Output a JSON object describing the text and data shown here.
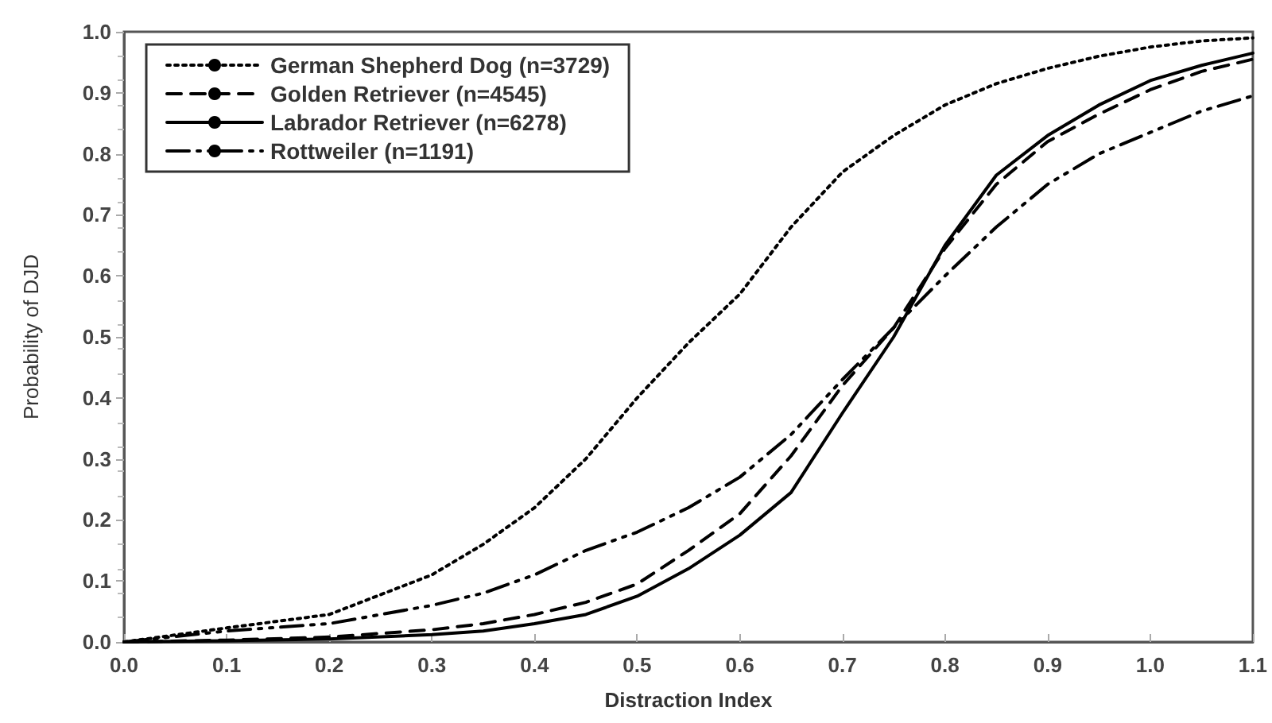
{
  "chart_data": {
    "type": "line",
    "xlabel": "Distraction Index",
    "ylabel": "Probability of DJD",
    "x": [
      0,
      0.1,
      0.2,
      0.3,
      0.35,
      0.4,
      0.45,
      0.5,
      0.55,
      0.6,
      0.65,
      0.7,
      0.75,
      0.8,
      0.85,
      0.9,
      0.95,
      1.0,
      1.05,
      1.1
    ],
    "series": [
      {
        "name": "German Shepherd Dog (n=3729)",
        "color": "#000000",
        "line_style": "dotted",
        "values": [
          0,
          0.023,
          0.045,
          0.11,
          0.16,
          0.22,
          0.3,
          0.4,
          0.49,
          0.57,
          0.68,
          0.77,
          0.83,
          0.88,
          0.915,
          0.94,
          0.96,
          0.975,
          0.985,
          0.99
        ]
      },
      {
        "name": "Golden Retriever (n=4545)",
        "color": "#000000",
        "line_style": "dashed",
        "values": [
          0,
          0.003,
          0.008,
          0.02,
          0.03,
          0.045,
          0.065,
          0.095,
          0.15,
          0.21,
          0.305,
          0.42,
          0.515,
          0.645,
          0.75,
          0.82,
          0.865,
          0.905,
          0.935,
          0.955
        ]
      },
      {
        "name": "Labrador Retriever (n=6278)",
        "color": "#000000",
        "line_style": "solid",
        "values": [
          0,
          0.002,
          0.005,
          0.012,
          0.018,
          0.03,
          0.045,
          0.075,
          0.12,
          0.175,
          0.245,
          0.375,
          0.5,
          0.65,
          0.765,
          0.83,
          0.88,
          0.92,
          0.945,
          0.965
        ]
      },
      {
        "name": "Rottweiler (n=1191)",
        "color": "#000000",
        "line_style": "dashdot",
        "values": [
          0,
          0.018,
          0.03,
          0.06,
          0.08,
          0.11,
          0.15,
          0.18,
          0.22,
          0.27,
          0.34,
          0.43,
          0.515,
          0.6,
          0.68,
          0.75,
          0.8,
          0.835,
          0.87,
          0.895
        ]
      }
    ],
    "xlim": [
      0,
      1.1
    ],
    "xticks": [
      {
        "value": 0,
        "label": "0.0"
      },
      {
        "value": 0.1,
        "label": "0.1"
      },
      {
        "value": 0.2,
        "label": "0.2"
      },
      {
        "value": 0.3,
        "label": "0.3"
      },
      {
        "value": 0.4,
        "label": "0.4"
      },
      {
        "value": 0.5,
        "label": "0.5"
      },
      {
        "value": 0.6,
        "label": "0.6"
      },
      {
        "value": 0.7,
        "label": "0.7"
      },
      {
        "value": 0.8,
        "label": "0.8"
      },
      {
        "value": 0.9,
        "label": "0.9"
      },
      {
        "value": 1.0,
        "label": "1.0"
      },
      {
        "value": 1.1,
        "label": "1.1"
      }
    ],
    "ylim": [
      0,
      1
    ],
    "yticks": [
      {
        "value": 0,
        "label": "0.0"
      },
      {
        "value": 0.1,
        "label": "0.1"
      },
      {
        "value": 0.2,
        "label": "0.2"
      },
      {
        "value": 0.3,
        "label": "0.3"
      },
      {
        "value": 0.4,
        "label": "0.4"
      },
      {
        "value": 0.5,
        "label": "0.5"
      },
      {
        "value": 0.6,
        "label": "0.6"
      },
      {
        "value": 0.7,
        "label": "0.7"
      },
      {
        "value": 0.8,
        "label": "0.8"
      },
      {
        "value": 0.9,
        "label": "0.9"
      },
      {
        "value": 1.0,
        "label": "1.0"
      }
    ],
    "grid": false,
    "legend": "top left",
    "marker": "none"
  }
}
